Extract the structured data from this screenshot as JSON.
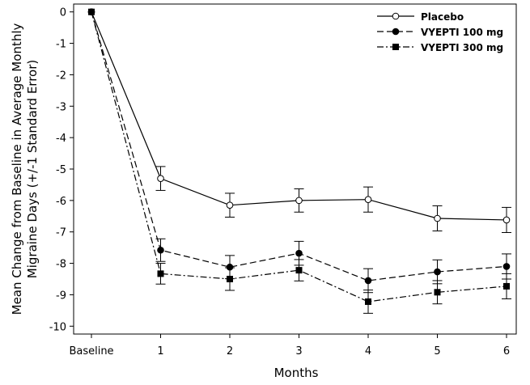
{
  "chart_data": {
    "type": "line",
    "x_label": "Months",
    "y_label": [
      "Mean Change from Baseline in Average Monthly",
      "Migraine Days (+/-1 Standard Error)"
    ],
    "categories": [
      "Baseline",
      "1",
      "2",
      "3",
      "4",
      "5",
      "6"
    ],
    "ylim": [
      -10.25,
      0.25
    ],
    "yticks": [
      0,
      -1,
      -2,
      -3,
      -4,
      -5,
      -6,
      -7,
      -8,
      -9,
      -10
    ],
    "legend": "top-right",
    "series": [
      {
        "name": "Placebo",
        "color": "#000000",
        "dash": "solid",
        "marker": "open-circle",
        "values": [
          0,
          -5.3,
          -6.15,
          -6.0,
          -5.97,
          -6.57,
          -6.62
        ],
        "errors": [
          null,
          0.38,
          0.38,
          0.37,
          0.4,
          0.4,
          0.4
        ]
      },
      {
        "name": "VYEPTI 100 mg",
        "color": "#000000",
        "dash": "dashed",
        "marker": "filled-circle",
        "values": [
          0,
          -7.58,
          -8.12,
          -7.68,
          -8.55,
          -8.27,
          -8.1
        ],
        "errors": [
          null,
          0.36,
          0.37,
          0.38,
          0.38,
          0.38,
          0.4
        ]
      },
      {
        "name": "VYEPTI 300 mg",
        "color": "#000000",
        "dash": "dash-dot",
        "marker": "filled-square",
        "values": [
          0,
          -8.33,
          -8.5,
          -8.22,
          -9.22,
          -8.92,
          -8.73
        ],
        "errors": [
          null,
          0.33,
          0.36,
          0.34,
          0.37,
          0.37,
          0.4
        ]
      }
    ]
  }
}
